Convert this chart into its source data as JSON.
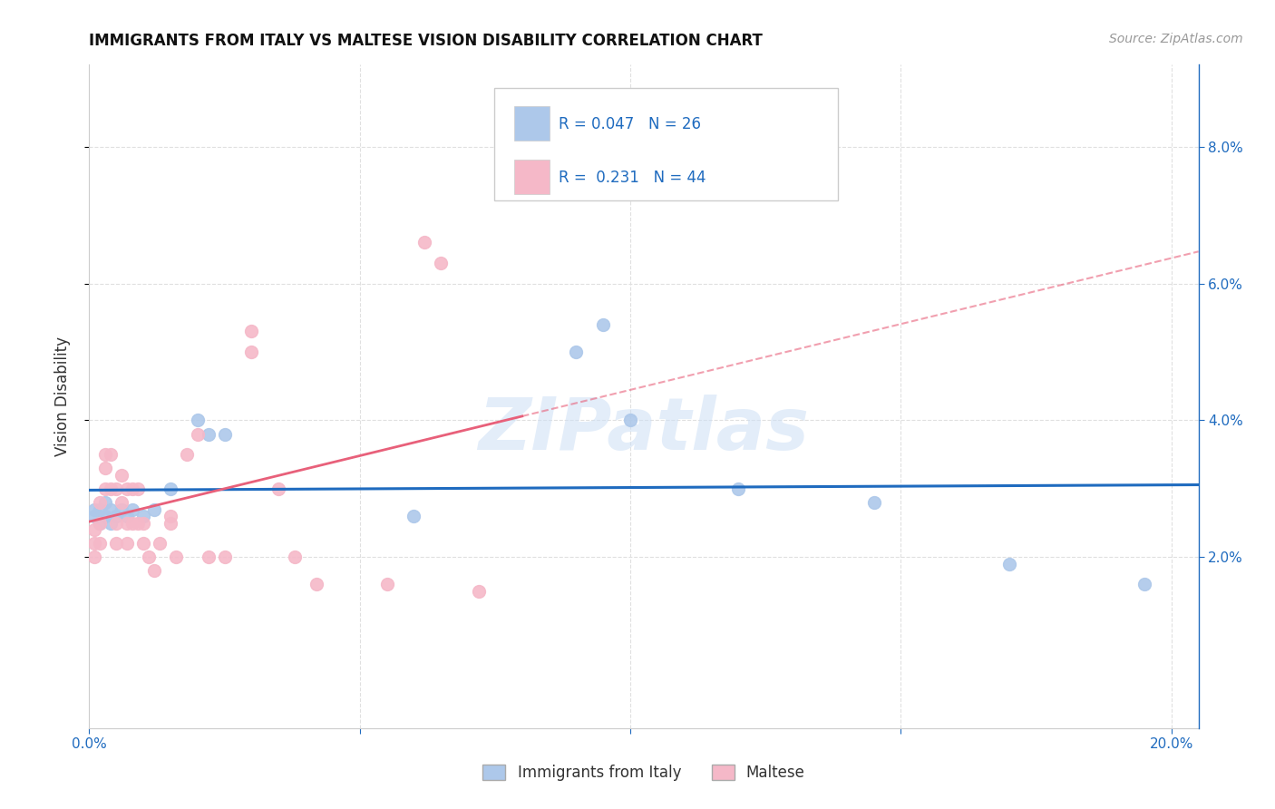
{
  "title": "IMMIGRANTS FROM ITALY VS MALTESE VISION DISABILITY CORRELATION CHART",
  "source": "Source: ZipAtlas.com",
  "ylabel": "Vision Disability",
  "xlim": [
    0.0,
    0.205
  ],
  "ylim": [
    -0.005,
    0.092
  ],
  "xticks": [
    0.0,
    0.05,
    0.1,
    0.15,
    0.2
  ],
  "yticks": [
    0.02,
    0.04,
    0.06,
    0.08
  ],
  "xtick_labels": [
    "0.0%",
    "",
    "",
    "",
    "20.0%"
  ],
  "ytick_labels_right": [
    "2.0%",
    "4.0%",
    "6.0%",
    "8.0%"
  ],
  "legend_italy_label": "Immigrants from Italy",
  "legend_maltese_label": "Maltese",
  "italy_R": "0.047",
  "italy_N": "26",
  "maltese_R": "0.231",
  "maltese_N": "44",
  "italy_color": "#adc8ea",
  "italy_line_color": "#1f6bbf",
  "maltese_color": "#f5b8c8",
  "maltese_line_color": "#e8607a",
  "italy_scatter_x": [
    0.001,
    0.001,
    0.002,
    0.002,
    0.003,
    0.003,
    0.004,
    0.004,
    0.005,
    0.006,
    0.007,
    0.008,
    0.01,
    0.012,
    0.015,
    0.02,
    0.022,
    0.025,
    0.06,
    0.09,
    0.095,
    0.1,
    0.12,
    0.145,
    0.17,
    0.195
  ],
  "italy_scatter_y": [
    0.027,
    0.026,
    0.027,
    0.025,
    0.028,
    0.026,
    0.027,
    0.025,
    0.026,
    0.027,
    0.026,
    0.027,
    0.026,
    0.027,
    0.03,
    0.04,
    0.038,
    0.038,
    0.026,
    0.05,
    0.054,
    0.04,
    0.03,
    0.028,
    0.019,
    0.016
  ],
  "maltese_scatter_x": [
    0.001,
    0.001,
    0.001,
    0.002,
    0.002,
    0.002,
    0.003,
    0.003,
    0.003,
    0.004,
    0.004,
    0.005,
    0.005,
    0.005,
    0.006,
    0.006,
    0.007,
    0.007,
    0.007,
    0.008,
    0.008,
    0.009,
    0.009,
    0.01,
    0.01,
    0.011,
    0.012,
    0.013,
    0.015,
    0.015,
    0.016,
    0.018,
    0.02,
    0.022,
    0.025,
    0.03,
    0.03,
    0.035,
    0.038,
    0.042,
    0.055,
    0.062,
    0.065,
    0.072
  ],
  "maltese_scatter_y": [
    0.024,
    0.022,
    0.02,
    0.022,
    0.025,
    0.028,
    0.03,
    0.033,
    0.035,
    0.03,
    0.035,
    0.022,
    0.025,
    0.03,
    0.032,
    0.028,
    0.022,
    0.025,
    0.03,
    0.025,
    0.03,
    0.025,
    0.03,
    0.025,
    0.022,
    0.02,
    0.018,
    0.022,
    0.026,
    0.025,
    0.02,
    0.035,
    0.038,
    0.02,
    0.02,
    0.05,
    0.053,
    0.03,
    0.02,
    0.016,
    0.016,
    0.066,
    0.063,
    0.015
  ],
  "watermark": "ZIPatlas",
  "background_color": "#ffffff",
  "grid_color": "#e0e0e0"
}
